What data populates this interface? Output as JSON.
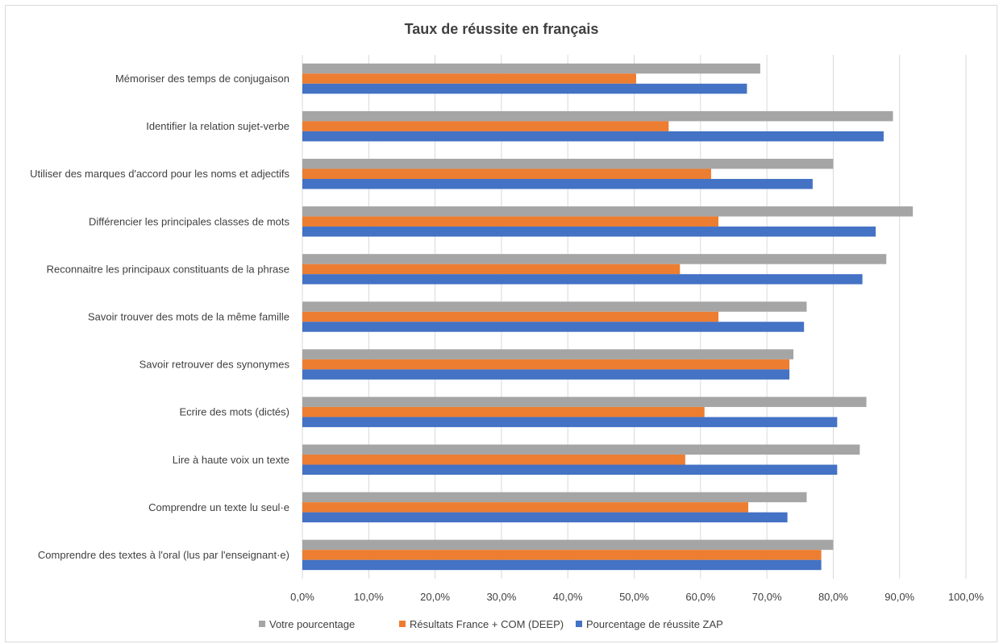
{
  "chart_data": {
    "type": "bar",
    "orientation": "horizontal",
    "title": "Taux de réussite en français",
    "xlabel": "",
    "ylabel": "",
    "xlim": [
      0,
      100
    ],
    "grid": true,
    "legend_position": "bottom",
    "ticks": [
      "0,0%",
      "10,0%",
      "20,0%",
      "30,0%",
      "40,0%",
      "50,0%",
      "60,0%",
      "70,0%",
      "80,0%",
      "90,0%",
      "100,0%"
    ],
    "categories": [
      "Mémoriser des temps de conjugaison",
      "Identifier la relation sujet-verbe",
      "Utiliser des marques d'accord pour les noms et adjectifs",
      "Différencier les principales classes de mots",
      "Reconnaitre les principaux constituants de la phrase",
      "Savoir trouver des mots de la même famille",
      "Savoir retrouver des synonymes",
      "Ecrire des mots (dictés)",
      "Lire à haute voix un texte",
      "Comprendre un texte lu seul·e",
      "Comprendre des textes à l'oral (lus par l'enseignant·e)"
    ],
    "series": [
      {
        "name": "Votre pourcentage",
        "color": "#a5a5a5",
        "values": [
          69.0,
          89.0,
          80.0,
          92.0,
          88.0,
          76.0,
          74.0,
          85.0,
          84.0,
          76.0,
          80.0
        ]
      },
      {
        "name": "Résultats France + COM (DEEP)",
        "color": "#ed7d31",
        "values": [
          50.3,
          55.2,
          61.6,
          62.7,
          56.9,
          62.7,
          73.4,
          60.6,
          57.7,
          67.2,
          78.2
        ]
      },
      {
        "name": "Pourcentage de réussite ZAP",
        "color": "#4472c4",
        "values": [
          67.0,
          87.6,
          76.9,
          86.4,
          84.4,
          75.6,
          73.4,
          80.6,
          80.6,
          73.1,
          78.2
        ]
      }
    ],
    "legend_order": [
      0,
      1,
      2
    ]
  }
}
